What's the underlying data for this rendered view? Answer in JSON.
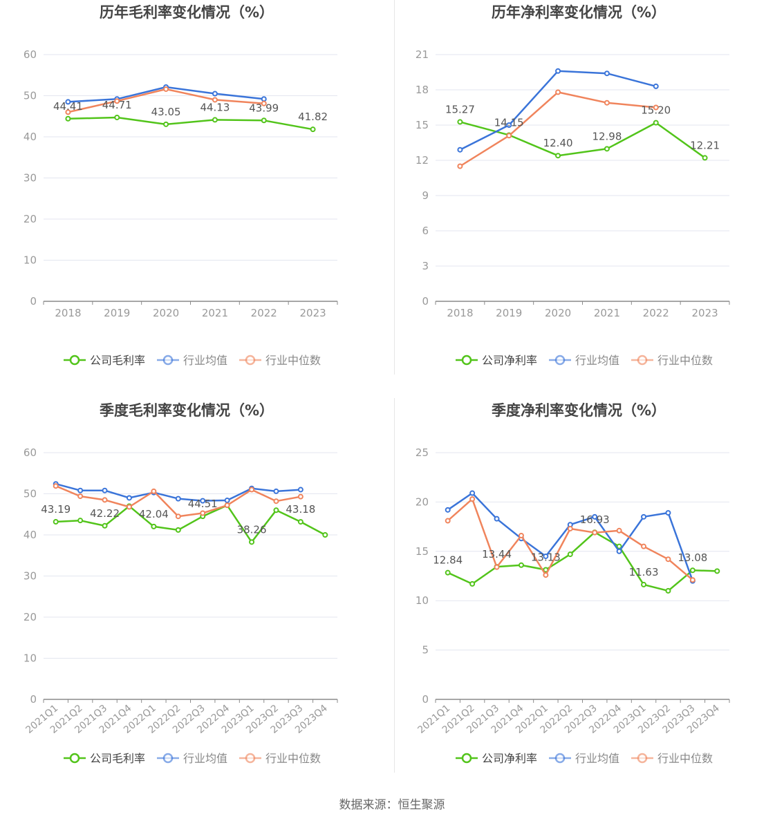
{
  "colors": {
    "company": "#52c41a",
    "avg": "#3a74d9",
    "median": "#f0845c",
    "axis": "#8a8a8a",
    "grid": "#e3e6ef",
    "label": "#999999",
    "title": "#444444"
  },
  "footer": {
    "source": "数据来源：恒生聚源"
  },
  "chart_data": [
    {
      "type": "line",
      "title": "历年毛利率变化情况（%）",
      "categories": [
        "2018",
        "2019",
        "2020",
        "2021",
        "2022",
        "2023"
      ],
      "yticks": [
        0,
        10,
        20,
        30,
        40,
        50,
        60
      ],
      "ylim": [
        0,
        60
      ],
      "grid": true,
      "legend_position": "bottom",
      "series": [
        {
          "name": "公司毛利率",
          "key": "company",
          "values": [
            44.41,
            44.71,
            43.05,
            44.13,
            43.99,
            41.82
          ],
          "labels": [
            "44.41",
            "44.71",
            "43.05",
            "44.13",
            "43.99",
            "41.82"
          ]
        },
        {
          "name": "行业均值",
          "key": "avg",
          "values": [
            48.5,
            49.2,
            52.1,
            50.5,
            49.2,
            null
          ]
        },
        {
          "name": "行业中位数",
          "key": "median",
          "values": [
            46.0,
            48.7,
            51.6,
            49.0,
            48.1,
            null
          ]
        }
      ]
    },
    {
      "type": "line",
      "title": "历年净利率变化情况（%）",
      "categories": [
        "2018",
        "2019",
        "2020",
        "2021",
        "2022",
        "2023"
      ],
      "yticks": [
        0,
        3,
        6,
        9,
        12,
        15,
        18,
        21
      ],
      "ylim": [
        0,
        21
      ],
      "grid": true,
      "legend_position": "bottom",
      "series": [
        {
          "name": "公司净利率",
          "key": "company",
          "values": [
            15.27,
            14.15,
            12.4,
            12.98,
            15.2,
            12.21
          ],
          "labels": [
            "15.27",
            "14.15",
            "12.40",
            "12.98",
            "15.20",
            "12.21"
          ]
        },
        {
          "name": "行业均值",
          "key": "avg",
          "values": [
            12.9,
            15.0,
            19.6,
            19.4,
            18.3,
            null
          ]
        },
        {
          "name": "行业中位数",
          "key": "median",
          "values": [
            11.5,
            14.1,
            17.8,
            16.9,
            16.5,
            null
          ]
        }
      ]
    },
    {
      "type": "line",
      "title": "季度毛利率变化情况（%）",
      "categories": [
        "2021Q1",
        "2021Q2",
        "2021Q3",
        "2021Q4",
        "2022Q1",
        "2022Q2",
        "2022Q3",
        "2022Q4",
        "2023Q1",
        "2023Q2",
        "2023Q3",
        "2023Q4"
      ],
      "yticks": [
        0,
        10,
        20,
        30,
        40,
        50,
        60
      ],
      "ylim": [
        0,
        60
      ],
      "grid": true,
      "legend_position": "bottom",
      "series": [
        {
          "name": "公司毛利率",
          "key": "company",
          "values": [
            43.19,
            43.5,
            42.22,
            47.0,
            42.04,
            41.2,
            44.51,
            47.2,
            38.26,
            46.0,
            43.18,
            40.0
          ],
          "labels": [
            "43.19",
            "",
            "42.22",
            "",
            "42.04",
            "",
            "44.51",
            "",
            "38.26",
            "",
            "43.18",
            ""
          ]
        },
        {
          "name": "行业均值",
          "key": "avg",
          "values": [
            52.4,
            50.8,
            50.8,
            49.0,
            50.3,
            48.8,
            48.3,
            48.4,
            51.3,
            50.6,
            51.0,
            null
          ]
        },
        {
          "name": "行业中位数",
          "key": "median",
          "values": [
            51.9,
            49.4,
            48.5,
            46.8,
            50.6,
            44.5,
            45.3,
            47.2,
            51.0,
            48.2,
            49.3,
            null
          ]
        }
      ]
    },
    {
      "type": "line",
      "title": "季度净利率变化情况（%）",
      "categories": [
        "2021Q1",
        "2021Q2",
        "2021Q3",
        "2021Q4",
        "2022Q1",
        "2022Q2",
        "2022Q3",
        "2022Q4",
        "2023Q1",
        "2023Q2",
        "2023Q3",
        "2023Q4"
      ],
      "yticks": [
        0,
        5,
        10,
        15,
        20,
        25
      ],
      "ylim": [
        0,
        25
      ],
      "grid": true,
      "legend_position": "bottom",
      "series": [
        {
          "name": "公司净利率",
          "key": "company",
          "values": [
            12.84,
            11.7,
            13.44,
            13.6,
            13.13,
            14.7,
            16.93,
            15.5,
            11.63,
            11.0,
            13.08,
            13.0
          ],
          "labels": [
            "12.84",
            "",
            "13.44",
            "",
            "13.13",
            "",
            "16.93",
            "",
            "11.63",
            "",
            "13.08",
            ""
          ]
        },
        {
          "name": "行业均值",
          "key": "avg",
          "values": [
            19.2,
            20.9,
            18.3,
            16.3,
            14.5,
            17.7,
            18.5,
            15.0,
            18.5,
            18.9,
            12.0,
            null
          ]
        },
        {
          "name": "行业中位数",
          "key": "median",
          "values": [
            18.1,
            20.3,
            13.4,
            16.6,
            12.6,
            17.3,
            16.9,
            17.1,
            15.5,
            14.2,
            12.1,
            null
          ]
        }
      ]
    }
  ]
}
